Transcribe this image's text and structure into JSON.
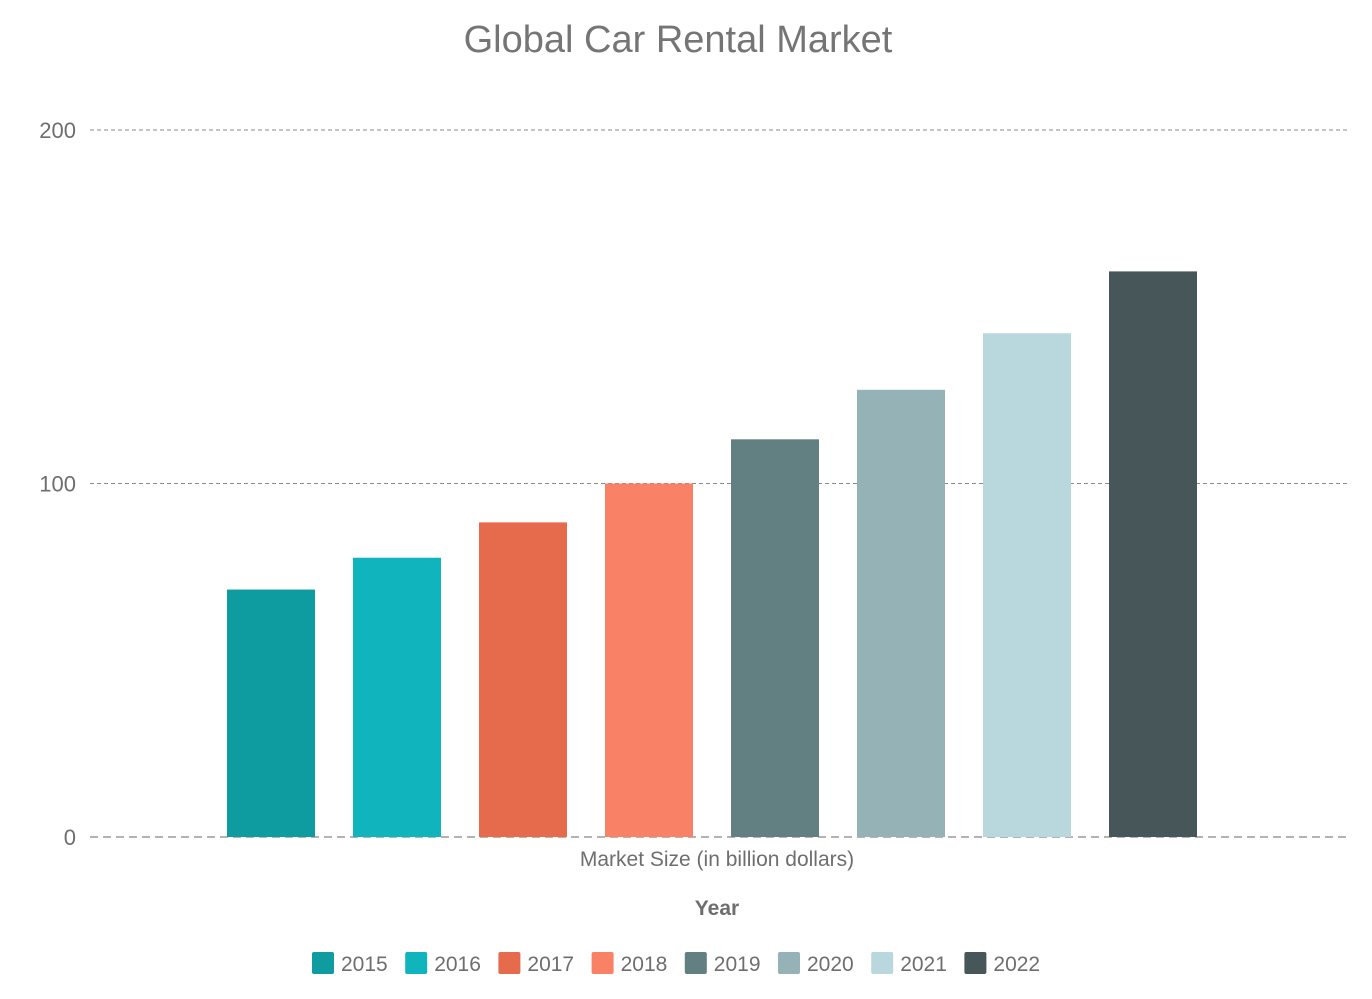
{
  "chart_data": {
    "type": "bar",
    "title": "Global Car Rental Market",
    "xlabel": "Year",
    "category_label": "Market Size (in billion dollars)",
    "ylabel": "",
    "ylim": [
      0,
      200
    ],
    "yticks": [
      "0",
      "100",
      "200"
    ],
    "grid": true,
    "legend_position": "bottom",
    "series": [
      {
        "name": "2015",
        "value": 70,
        "color": "#0e9ca0"
      },
      {
        "name": "2016",
        "value": 79,
        "color": "#10b4bc"
      },
      {
        "name": "2017",
        "value": 89,
        "color": "#e66b4c"
      },
      {
        "name": "2018",
        "value": 100,
        "color": "#f98266"
      },
      {
        "name": "2019",
        "value": 112.5,
        "color": "#627f82"
      },
      {
        "name": "2020",
        "value": 126.5,
        "color": "#95b2b7"
      },
      {
        "name": "2021",
        "value": 142.5,
        "color": "#b8d8dd"
      },
      {
        "name": "2022",
        "value": 160,
        "color": "#475659"
      }
    ]
  }
}
